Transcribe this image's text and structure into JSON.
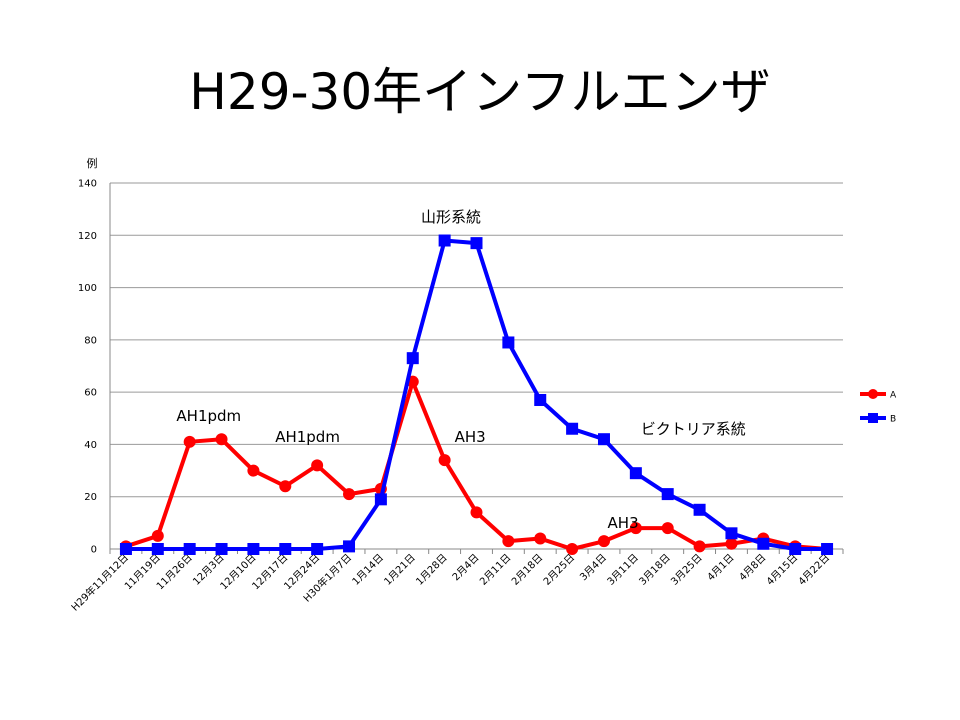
{
  "slide": {
    "title": "H29-30年インフルエンザ"
  },
  "chart_data": {
    "type": "line",
    "y_unit_label": "例",
    "ylim": [
      0,
      140
    ],
    "y_ticks": [
      0,
      20,
      40,
      60,
      80,
      100,
      120,
      140
    ],
    "grid": true,
    "legend_position": "right",
    "categories": [
      "H29年11月12日",
      "11月19日",
      "11月26日",
      "12月3日",
      "12月10日",
      "12月17日",
      "12月24日",
      "H30年1月7日",
      "1月14日",
      "1月21日",
      "1月28日",
      "2月4日",
      "2月11日",
      "2月18日",
      "2月25日",
      "3月4日",
      "3月11日",
      "3月18日",
      "3月25日",
      "4月1日",
      "4月8日",
      "4月15日",
      "4月22日"
    ],
    "series": [
      {
        "name": "A",
        "color": "#ff0000",
        "marker": "circle",
        "values": [
          1,
          5,
          41,
          42,
          30,
          24,
          32,
          21,
          23,
          64,
          34,
          14,
          3,
          4,
          0,
          3,
          8,
          8,
          1,
          2,
          4,
          1,
          0
        ]
      },
      {
        "name": "B",
        "color": "#0000ff",
        "marker": "square",
        "values": [
          0,
          0,
          0,
          0,
          0,
          0,
          0,
          1,
          19,
          73,
          118,
          117,
          79,
          57,
          46,
          42,
          29,
          21,
          15,
          6,
          2,
          0,
          0
        ]
      }
    ],
    "annotations": [
      {
        "text": "AH1pdm",
        "cat": 2.6,
        "y": 49
      },
      {
        "text": "AH1pdm",
        "cat": 5.7,
        "y": 41
      },
      {
        "text": "AH3",
        "cat": 10.8,
        "y": 41
      },
      {
        "text": "AH3",
        "cat": 15.6,
        "y": 8
      },
      {
        "text": "山形系統",
        "cat": 10.2,
        "y": 125
      },
      {
        "text": "ビクトリア系統",
        "cat": 17.8,
        "y": 44
      }
    ]
  }
}
